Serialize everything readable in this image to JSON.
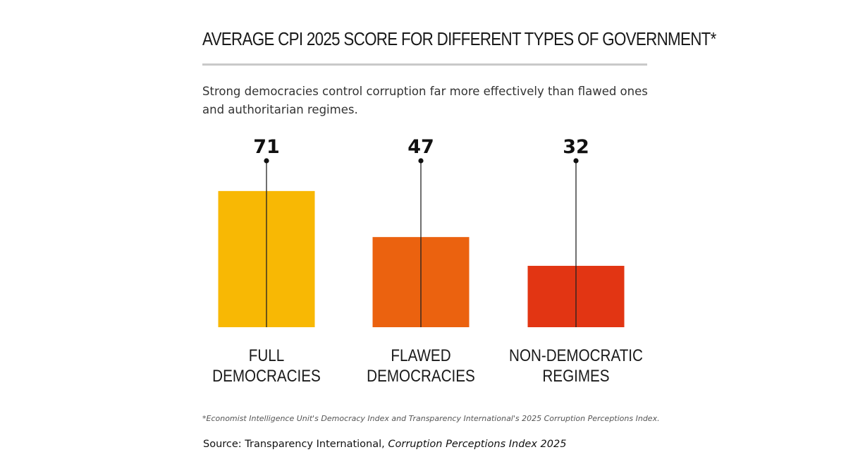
{
  "chart_data": {
    "type": "bar",
    "title": "AVERAGE CPI 2025 SCORE FOR DIFFERENT TYPES OF GOVERNMENT*",
    "subtitle": "Strong democracies control corruption far more effectively than flawed ones and authoritarian regimes.",
    "categories": [
      [
        "FULL",
        "DEMOCRACIES"
      ],
      [
        "FLAWED",
        "DEMOCRACIES"
      ],
      [
        "NON-DEMOCRATIC",
        "REGIMES"
      ]
    ],
    "values": [
      71,
      47,
      32
    ],
    "colors": [
      "#F8B804",
      "#EB620F",
      "#E23513"
    ],
    "xlabel": "",
    "ylabel": "",
    "grid": false,
    "legend": "none"
  },
  "footnote": "*Economist Intelligence Unit's Democracy Index and Transparency International's 2025 Corruption Perceptions Index.",
  "source": {
    "prefix": "Source: Transparency International, ",
    "publication": "Corruption Perceptions Index 2025"
  }
}
